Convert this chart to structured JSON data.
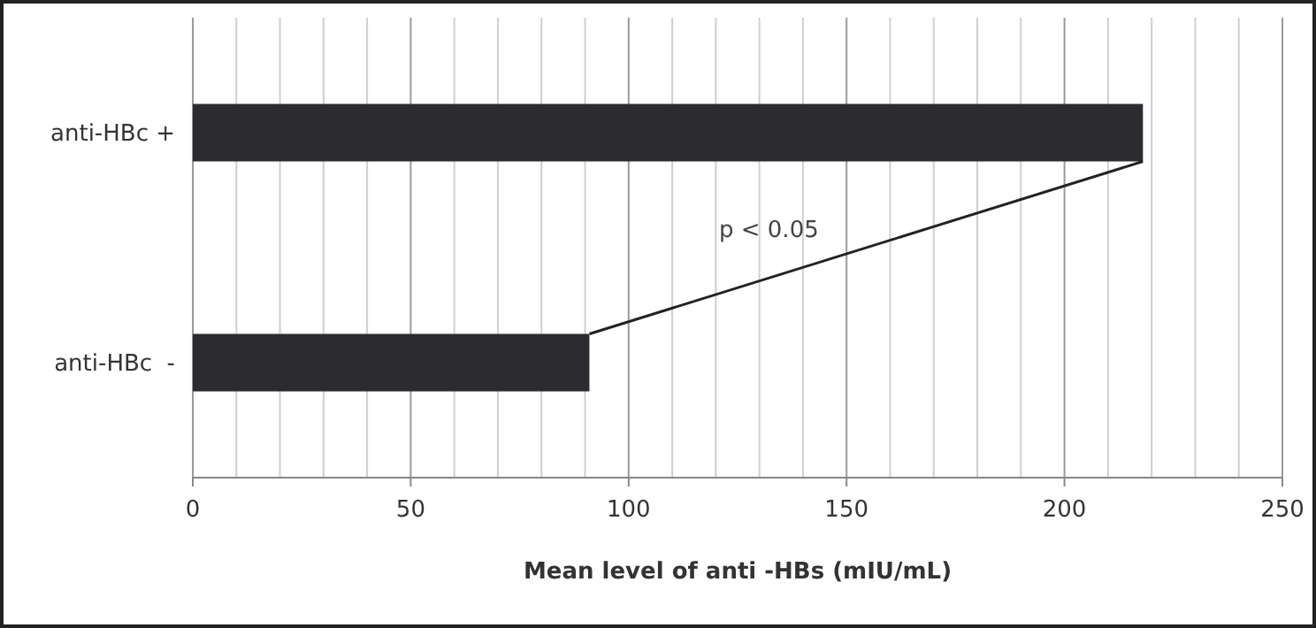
{
  "chart_data": {
    "type": "bar",
    "orientation": "horizontal",
    "categories": [
      "anti-HBc +",
      "anti-HBc  -"
    ],
    "values": [
      218,
      91
    ],
    "color": "#2b2b30",
    "xlim": [
      0,
      250
    ],
    "xticks": [
      0,
      50,
      100,
      150,
      200,
      250
    ],
    "grid": "x",
    "xlabel": "Mean level of anti -HBs (mIU/mL)",
    "annotations": [
      "p < 0.05"
    ]
  }
}
